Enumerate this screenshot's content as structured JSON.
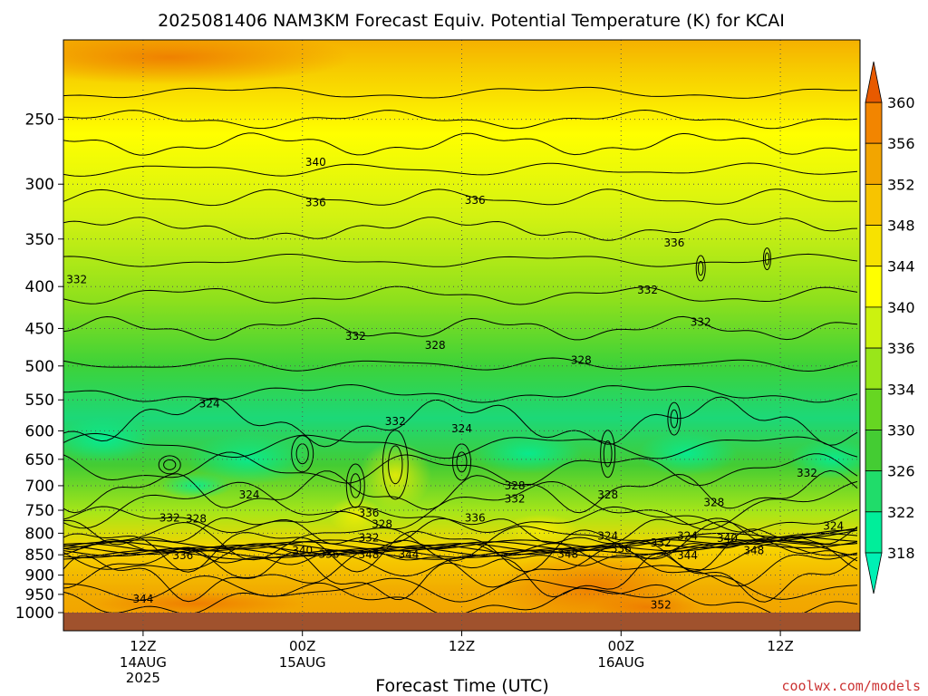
{
  "title": "2025081406 NAM3KM Forecast Equiv. Potential Temperature (K) for KCAI",
  "watermark": "coolwx.com/models",
  "colors": {
    "background": "#ffffff",
    "ground": "#a0522d",
    "watermark": "#cc3333",
    "grid": "#555555",
    "contour": "#000000"
  },
  "chart_data": {
    "type": "heatmap",
    "title": "2025081406 NAM3KM Forecast Equiv. Potential Temperature (K) for KCAI",
    "xlabel": "Forecast Time (UTC)",
    "ylabel": "",
    "x_ticks": [
      {
        "label": "12Z",
        "sub": [
          "14AUG",
          "2025"
        ],
        "hours": 6
      },
      {
        "label": "00Z",
        "sub": [
          "15AUG"
        ],
        "hours": 18
      },
      {
        "label": "12Z",
        "sub": [],
        "hours": 30
      },
      {
        "label": "00Z",
        "sub": [
          "16AUG"
        ],
        "hours": 42
      },
      {
        "label": "12Z",
        "sub": [],
        "hours": 54
      }
    ],
    "x_range_hours": [
      0,
      60
    ],
    "y_ticks": [
      250,
      300,
      350,
      400,
      450,
      500,
      550,
      600,
      650,
      700,
      750,
      800,
      850,
      900,
      950,
      1000
    ],
    "y_range_hPa": [
      200,
      1000
    ],
    "y_scale": "log",
    "grid": true,
    "colorbar": {
      "unit": "K",
      "levels": [
        318,
        322,
        326,
        330,
        334,
        336,
        340,
        344,
        348,
        352,
        356,
        360
      ],
      "colors": [
        "#00ee9a",
        "#20dc6a",
        "#44cc33",
        "#66d622",
        "#99e61a",
        "#ccf20f",
        "#ffff00",
        "#f7e200",
        "#f7c400",
        "#f2a500",
        "#f28500",
        "#e96a00"
      ],
      "extend": "both",
      "low_color": "#00f0b4",
      "high_color": "#e85a00"
    },
    "contour_labels": [
      {
        "text": "340",
        "hours": 19,
        "p": 282
      },
      {
        "text": "336",
        "hours": 19,
        "p": 316
      },
      {
        "text": "336",
        "hours": 31,
        "p": 314
      },
      {
        "text": "336",
        "hours": 46,
        "p": 354
      },
      {
        "text": "332",
        "hours": 1,
        "p": 392
      },
      {
        "text": "332",
        "hours": 44,
        "p": 404
      },
      {
        "text": "332",
        "hours": 22,
        "p": 460
      },
      {
        "text": "332",
        "hours": 48,
        "p": 442
      },
      {
        "text": "328",
        "hours": 28,
        "p": 472
      },
      {
        "text": "328",
        "hours": 39,
        "p": 492
      },
      {
        "text": "324",
        "hours": 11,
        "p": 556
      },
      {
        "text": "332",
        "hours": 25,
        "p": 584
      },
      {
        "text": "324",
        "hours": 30,
        "p": 596
      },
      {
        "text": "324",
        "hours": 14,
        "p": 718
      },
      {
        "text": "328",
        "hours": 34,
        "p": 700
      },
      {
        "text": "332",
        "hours": 34,
        "p": 726
      },
      {
        "text": "328",
        "hours": 41,
        "p": 718
      },
      {
        "text": "328",
        "hours": 49,
        "p": 734
      },
      {
        "text": "332",
        "hours": 56,
        "p": 676
      },
      {
        "text": "332",
        "hours": 8,
        "p": 766
      },
      {
        "text": "328",
        "hours": 10,
        "p": 768
      },
      {
        "text": "336",
        "hours": 23,
        "p": 756
      },
      {
        "text": "328",
        "hours": 24,
        "p": 780
      },
      {
        "text": "336",
        "hours": 31,
        "p": 766
      },
      {
        "text": "332",
        "hours": 23,
        "p": 810
      },
      {
        "text": "324",
        "hours": 41,
        "p": 806
      },
      {
        "text": "324",
        "hours": 47,
        "p": 806
      },
      {
        "text": "332",
        "hours": 45,
        "p": 822
      },
      {
        "text": "340",
        "hours": 50,
        "p": 812
      },
      {
        "text": "324",
        "hours": 58,
        "p": 784
      },
      {
        "text": "340",
        "hours": 18,
        "p": 840
      },
      {
        "text": "336",
        "hours": 20,
        "p": 848
      },
      {
        "text": "348",
        "hours": 23,
        "p": 850
      },
      {
        "text": "344",
        "hours": 26,
        "p": 850
      },
      {
        "text": "336",
        "hours": 9,
        "p": 852
      },
      {
        "text": "348",
        "hours": 38,
        "p": 848
      },
      {
        "text": "336",
        "hours": 42,
        "p": 836
      },
      {
        "text": "344",
        "hours": 47,
        "p": 852
      },
      {
        "text": "348",
        "hours": 52,
        "p": 840
      },
      {
        "text": "344",
        "hours": 6,
        "p": 962
      },
      {
        "text": "352",
        "hours": 45,
        "p": 978
      }
    ]
  }
}
